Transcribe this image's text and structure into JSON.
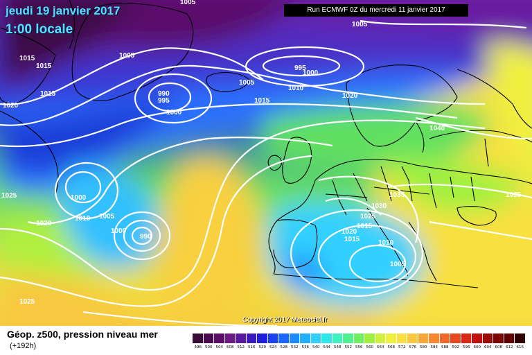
{
  "header": {
    "date": "jeudi 19 janvier 2017",
    "time": "1:00 locale",
    "run": "Run ECMWF 0Z du mercredi 11 janvier 2017"
  },
  "copyright": "Copyright 2017 Meteociel.fr",
  "legend": {
    "title": "Géop. z500, pression niveau mer",
    "subtitle": "(+192h)",
    "scale_values": [
      "496",
      "500",
      "504",
      "508",
      "512",
      "516",
      "520",
      "524",
      "528",
      "532",
      "536",
      "540",
      "544",
      "548",
      "552",
      "556",
      "560",
      "564",
      "568",
      "572",
      "576",
      "580",
      "584",
      "588",
      "592",
      "596",
      "600",
      "604",
      "608",
      "612",
      "616"
    ],
    "scale_colors": [
      "#3a0a3a",
      "#4a0a4e",
      "#5c0e66",
      "#6e1a86",
      "#5a1aa0",
      "#3a1ab8",
      "#2020d8",
      "#1e40ee",
      "#1a66ff",
      "#1a8cff",
      "#20b0ff",
      "#30d0ff",
      "#30e8e8",
      "#40f0c0",
      "#50f090",
      "#70f060",
      "#a0f040",
      "#d0f040",
      "#f0f040",
      "#f8e040",
      "#f8c840",
      "#f8a838",
      "#f88830",
      "#f06828",
      "#e84820",
      "#d82818",
      "#c01010",
      "#a00808",
      "#800404",
      "#600000",
      "#300000"
    ]
  },
  "pressure_labels": [
    "1005",
    "1015",
    "1015",
    "1005",
    "1020",
    "1015",
    "990",
    "995",
    "1000",
    "995",
    "1000",
    "1005",
    "1010",
    "1015",
    "1020",
    "1005",
    "1040",
    "1025",
    "1000",
    "1010",
    "1005",
    "1020",
    "1000",
    "990",
    "1035",
    "1030",
    "1025",
    "1020",
    "1015",
    "1015",
    "1010",
    "1005",
    "1035",
    "1025"
  ],
  "colors": {
    "land_border": "#000000",
    "isobar": "#ffffff",
    "ocean_deep_low": "#5a1a8a",
    "subtropical_high": "#f0d040"
  }
}
